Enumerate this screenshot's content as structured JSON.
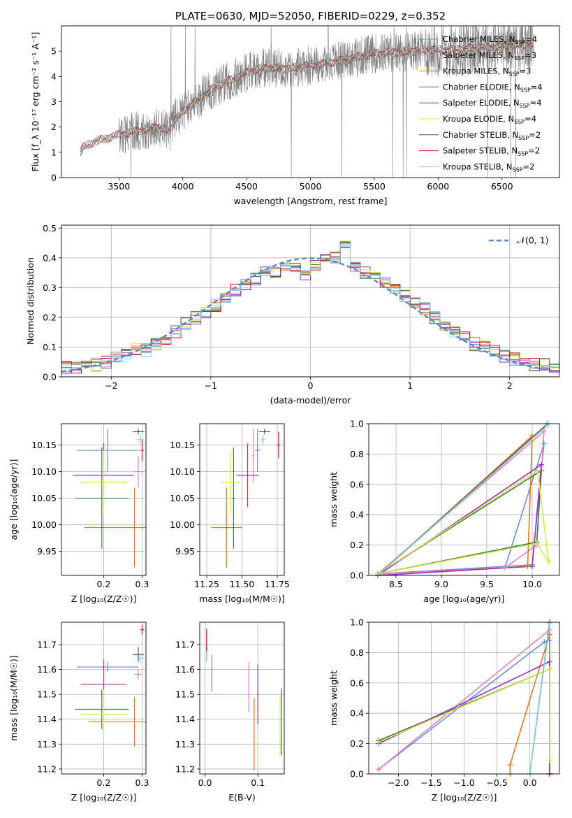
{
  "colors": {
    "chabrier_miles": "#6a8fd8",
    "salpeter_miles": "#e87fb8",
    "kroupa_miles": "#e07a1f",
    "chabrier_elodie": "#3f7f3f",
    "salpeter_elodie": "#9b30c8",
    "kroupa_elodie": "#d6e84a",
    "chabrier_stelib": "#555555",
    "salpeter_stelib": "#c8141e",
    "kroupa_stelib": "#7fd0e0",
    "data": "#808080",
    "gauss": "#5b86d1",
    "grid": "#b0b0b0"
  },
  "chart_data": [
    {
      "id": "spectrum",
      "type": "line",
      "title": "PLATE=0630, MJD=52050, FIBERID=0229, z=0.352",
      "xlabel": "wavelength [Angstrom, rest frame]",
      "ylabel": "Flux [f_λ 10⁻¹⁷ erg cm⁻² s⁻¹ A⁻¹]",
      "xlim": [
        3050,
        6950
      ],
      "ylim": [
        0,
        6
      ],
      "xticks": [
        "3500",
        "4000",
        "4500",
        "5000",
        "5500",
        "6000",
        "6500"
      ],
      "yticks": [
        "0",
        "1",
        "2",
        "3",
        "4",
        "5"
      ],
      "grid": false,
      "legend_position": "upper right",
      "legend": [
        "Chabrier MILES, N_SSP=4",
        "Salpeter MILES, N_SSP=3",
        "Kroupa MILES, N_SSP=3",
        "Chabrier ELODIE, N_SSP=4",
        "Salpeter ELODIE, N_SSP=4",
        "Kroupa ELODIE, N_SSP=4",
        "Chabrier STELIB, N_SSP=2",
        "Salpeter STELIB, N_SSP=2",
        "Kroupa STELIB, N_SSP=2"
      ],
      "model_trend": {
        "x": [
          3200,
          3220,
          3300,
          3400,
          3500,
          3600,
          3700,
          3800,
          3900,
          3940,
          4000,
          4100,
          4200,
          4300,
          4400,
          4500,
          4600,
          4700,
          4800,
          4900,
          5000,
          5100,
          5200,
          5300,
          5400,
          5500,
          5600,
          5700,
          5800,
          5900,
          6000,
          6100,
          6200,
          6300,
          6400,
          6500,
          6600,
          6700,
          6750
        ],
        "y": [
          1.0,
          1.2,
          1.4,
          1.55,
          1.7,
          1.8,
          1.9,
          2.0,
          1.85,
          2.3,
          2.6,
          3.0,
          3.4,
          3.7,
          3.9,
          4.15,
          4.3,
          4.35,
          4.3,
          4.35,
          4.45,
          4.5,
          4.6,
          4.7,
          4.8,
          4.9,
          4.95,
          4.95,
          5.0,
          5.05,
          5.05,
          5.05,
          5.1,
          5.15,
          5.15,
          5.2,
          5.25,
          5.25,
          5.3
        ]
      }
    },
    {
      "id": "residuals",
      "type": "histogram",
      "xlabel": "(data-model)/error",
      "ylabel": "Normed distribution",
      "xlim": [
        -2.5,
        2.5
      ],
      "ylim": [
        0,
        0.51
      ],
      "xticks": [
        "−2",
        "−1",
        "0",
        "1",
        "2"
      ],
      "yticks": [
        "0.0",
        "0.1",
        "0.2",
        "0.3",
        "0.4",
        "0.5"
      ],
      "grid": true,
      "legend": [
        "𝒩(0, 1)"
      ],
      "legend_position": "upper right",
      "bins": [
        -2.5,
        -2.4,
        -2.3,
        -2.2,
        -2.1,
        -2.0,
        -1.9,
        -1.8,
        -1.7,
        -1.6,
        -1.5,
        -1.4,
        -1.3,
        -1.2,
        -1.1,
        -1.0,
        -0.9,
        -0.8,
        -0.7,
        -0.6,
        -0.5,
        -0.4,
        -0.3,
        -0.2,
        -0.1,
        0.0,
        0.1,
        0.2,
        0.3,
        0.4,
        0.5,
        0.6,
        0.7,
        0.8,
        0.9,
        1.0,
        1.1,
        1.2,
        1.3,
        1.4,
        1.5,
        1.6,
        1.7,
        1.8,
        1.9,
        2.0,
        2.1,
        2.2,
        2.3,
        2.4,
        2.5
      ],
      "base_density": [
        0.03,
        0.03,
        0.035,
        0.04,
        0.05,
        0.07,
        0.08,
        0.09,
        0.09,
        0.11,
        0.13,
        0.15,
        0.18,
        0.2,
        0.22,
        0.24,
        0.27,
        0.29,
        0.31,
        0.33,
        0.35,
        0.35,
        0.37,
        0.36,
        0.34,
        0.37,
        0.39,
        0.4,
        0.45,
        0.37,
        0.35,
        0.33,
        0.32,
        0.3,
        0.27,
        0.25,
        0.23,
        0.2,
        0.17,
        0.15,
        0.13,
        0.11,
        0.1,
        0.09,
        0.07,
        0.06,
        0.05,
        0.04,
        0.04,
        0.03
      ]
    },
    {
      "id": "age_vs_Z",
      "type": "errorbar",
      "xlabel": "Z [log₁₀(Z/Z☉)]",
      "ylabel": "age  [log₁₀(age/yr)]",
      "xlim": [
        0.09,
        0.31
      ],
      "ylim": [
        9.905,
        10.19
      ],
      "xticks": [
        "0.2",
        "0.3"
      ],
      "yticks": [
        "9.95",
        "10.00",
        "10.05",
        "10.10",
        "10.15"
      ],
      "grid": true,
      "points": [
        {
          "model": "chabrier_miles",
          "x": 0.21,
          "xerr": 0.08,
          "y": 10.14,
          "yerr": 0.04
        },
        {
          "model": "salpeter_miles",
          "x": 0.29,
          "xerr": 0.01,
          "y": 10.1,
          "yerr": 0.03
        },
        {
          "model": "kroupa_miles",
          "x": 0.28,
          "xerr": 0.13,
          "y": 9.995,
          "yerr": 0.075
        },
        {
          "model": "chabrier_elodie",
          "x": 0.195,
          "xerr": 0.07,
          "y": 10.05,
          "yerr": 0.095
        },
        {
          "model": "salpeter_elodie",
          "x": 0.2,
          "xerr": 0.08,
          "y": 10.093,
          "yerr": 0.06
        },
        {
          "model": "kroupa_elodie",
          "x": 0.2,
          "xerr": 0.06,
          "y": 10.08,
          "yerr": 0.06
        },
        {
          "model": "chabrier_stelib",
          "x": 0.29,
          "xerr": 0.015,
          "y": 10.175,
          "yerr": 0.005
        },
        {
          "model": "salpeter_stelib",
          "x": 0.3,
          "xerr": 0.005,
          "y": 10.14,
          "yerr": 0.02
        },
        {
          "model": "kroupa_stelib",
          "x": 0.295,
          "xerr": 0.01,
          "y": 10.16,
          "yerr": 0.01
        }
      ]
    },
    {
      "id": "age_vs_mass",
      "type": "errorbar",
      "xlabel": "mass [log₁₀(M/M☉)]",
      "ylabel": "",
      "xlim": [
        11.2,
        11.8
      ],
      "ylim": [
        9.905,
        10.19
      ],
      "xticks": [
        "11.25",
        "11.50",
        "11.75"
      ],
      "yticks": [
        "9.95",
        "10.00",
        "10.05",
        "10.10",
        "10.15"
      ],
      "grid": true,
      "points": [
        {
          "model": "chabrier_miles",
          "x": 11.61,
          "xerr": 0.02,
          "y": 10.14,
          "yerr": 0.04
        },
        {
          "model": "salpeter_miles",
          "x": 11.58,
          "xerr": 0.01,
          "y": 10.13,
          "yerr": 0.05
        },
        {
          "model": "kroupa_miles",
          "x": 11.39,
          "xerr": 0.11,
          "y": 9.995,
          "yerr": 0.075
        },
        {
          "model": "chabrier_elodie",
          "x": 11.44,
          "xerr": 0.01,
          "y": 10.05,
          "yerr": 0.095
        },
        {
          "model": "salpeter_elodie",
          "x": 11.54,
          "xerr": 0.08,
          "y": 10.093,
          "yerr": 0.06
        },
        {
          "model": "kroupa_elodie",
          "x": 11.42,
          "xerr": 0.07,
          "y": 10.08,
          "yerr": 0.06
        },
        {
          "model": "chabrier_stelib",
          "x": 11.66,
          "xerr": 0.04,
          "y": 10.175,
          "yerr": 0.005
        },
        {
          "model": "salpeter_stelib",
          "x": 11.76,
          "xerr": 0.01,
          "y": 10.15,
          "yerr": 0.025
        },
        {
          "model": "kroupa_stelib",
          "x": 11.65,
          "xerr": 0.02,
          "y": 10.16,
          "yerr": 0.01
        }
      ]
    },
    {
      "id": "weight_vs_age",
      "type": "line",
      "xlabel": "age  [log₁₀(age/yr)]",
      "ylabel": "mass weight",
      "xlim": [
        8.2,
        10.3
      ],
      "ylim": [
        0,
        1
      ],
      "xticks": [
        "8.5",
        "9.0",
        "9.5",
        "10.0"
      ],
      "yticks": [
        "0.0",
        "0.2",
        "0.4",
        "0.6",
        "0.8",
        "1.0"
      ],
      "grid": true,
      "series": [
        {
          "model": "chabrier_miles",
          "x": [
            8.3,
            9.7,
            10.13,
            10.0,
            8.3
          ],
          "y": [
            0.01,
            0.05,
            0.87,
            0.07,
            0.01
          ]
        },
        {
          "model": "salpeter_miles",
          "x": [
            8.3,
            9.7,
            10.05,
            10.13,
            8.3
          ],
          "y": [
            0.01,
            0.05,
            0.2,
            0.95,
            0.01
          ]
        },
        {
          "model": "kroupa_miles",
          "x": [
            8.3,
            9.95,
            10.0,
            8.3
          ],
          "y": [
            0.0,
            0.06,
            0.92,
            0.0
          ]
        },
        {
          "model": "chabrier_elodie",
          "x": [
            8.3,
            10.05,
            10.1,
            8.3
          ],
          "y": [
            0.01,
            0.22,
            0.69,
            0.01
          ]
        },
        {
          "model": "salpeter_elodie",
          "x": [
            8.3,
            10.0,
            10.1,
            8.3
          ],
          "y": [
            0.0,
            0.06,
            0.73,
            0.0
          ]
        },
        {
          "model": "kroupa_elodie",
          "x": [
            8.3,
            10.05,
            10.18,
            10.06,
            8.3
          ],
          "y": [
            0.01,
            0.21,
            0.09,
            0.69,
            0.01
          ]
        },
        {
          "model": "chabrier_stelib",
          "x": [
            8.3,
            10.17
          ],
          "y": [
            0.0,
            1.0
          ]
        },
        {
          "model": "kroupa_stelib",
          "x": [
            8.3,
            10.17
          ],
          "y": [
            0.0,
            0.99
          ]
        }
      ]
    },
    {
      "id": "mass_vs_Z",
      "type": "errorbar",
      "xlabel": "Z [log₁₀(Z/Z☉)]",
      "ylabel": "mass [log₁₀(M/M☉)]",
      "xlim": [
        0.09,
        0.31
      ],
      "ylim": [
        11.18,
        11.79
      ],
      "xticks": [
        "0.2",
        "0.3"
      ],
      "yticks": [
        "11.2",
        "11.3",
        "11.4",
        "11.5",
        "11.6",
        "11.7"
      ],
      "grid": true,
      "points": [
        {
          "model": "chabrier_miles",
          "x": 0.21,
          "xerr": 0.08,
          "y": 11.61,
          "yerr": 0.02
        },
        {
          "model": "salpeter_miles",
          "x": 0.29,
          "xerr": 0.01,
          "y": 11.58,
          "yerr": 0.02
        },
        {
          "model": "kroupa_miles",
          "x": 0.28,
          "xerr": 0.12,
          "y": 11.39,
          "yerr": 0.1
        },
        {
          "model": "chabrier_elodie",
          "x": 0.195,
          "xerr": 0.07,
          "y": 11.44,
          "yerr": 0.08
        },
        {
          "model": "salpeter_elodie",
          "x": 0.2,
          "xerr": 0.06,
          "y": 11.54,
          "yerr": 0.1
        },
        {
          "model": "kroupa_elodie",
          "x": 0.2,
          "xerr": 0.06,
          "y": 11.42,
          "yerr": 0.1
        },
        {
          "model": "chabrier_stelib",
          "x": 0.29,
          "xerr": 0.015,
          "y": 11.66,
          "yerr": 0.03
        },
        {
          "model": "salpeter_stelib",
          "x": 0.3,
          "xerr": 0.005,
          "y": 11.76,
          "yerr": 0.02
        },
        {
          "model": "kroupa_stelib",
          "x": 0.295,
          "xerr": 0.01,
          "y": 11.645,
          "yerr": 0.02
        }
      ]
    },
    {
      "id": "mass_vs_ebv",
      "type": "errorbar",
      "xlabel": "E(B-V)",
      "ylabel": "",
      "xlim": [
        -0.01,
        0.15
      ],
      "ylim": [
        11.18,
        11.79
      ],
      "xticks": [
        "0.0",
        "0.1"
      ],
      "yticks": [
        "11.2",
        "11.3",
        "11.4",
        "11.5",
        "11.6",
        "11.7"
      ],
      "grid": true,
      "points": [
        {
          "model": "chabrier_miles",
          "x": 0.013,
          "y": 11.585,
          "yerr": 0.075
        },
        {
          "model": "salpeter_miles",
          "x": 0.083,
          "y": 11.53,
          "yerr": 0.1
        },
        {
          "model": "kroupa_miles",
          "x": 0.093,
          "y": 11.34,
          "yerr": 0.145
        },
        {
          "model": "chabrier_elodie",
          "x": 0.145,
          "y": 11.39,
          "yerr": 0.135
        },
        {
          "model": "salpeter_elodie",
          "x": 0.1,
          "y": 11.5,
          "yerr": 0.12
        },
        {
          "model": "kroupa_elodie",
          "x": 0.142,
          "y": 11.375,
          "yerr": 0.125
        },
        {
          "model": "chabrier_stelib",
          "x": 0.003,
          "y": 11.66,
          "yerr": 0.03
        },
        {
          "model": "salpeter_stelib",
          "x": 0.003,
          "y": 11.72,
          "yerr": 0.045
        },
        {
          "model": "kroupa_stelib",
          "x": 0.003,
          "y": 11.65,
          "yerr": 0.02
        }
      ]
    },
    {
      "id": "weight_vs_Z",
      "type": "line",
      "xlabel": "Z [log₁₀(Z/Z☉)]",
      "ylabel": "mass weight",
      "xlim": [
        -2.45,
        0.45
      ],
      "ylim": [
        0,
        1
      ],
      "xticks": [
        "−2.0",
        "−1.5",
        "−1.0",
        "−0.5",
        "0.0"
      ],
      "yticks": [
        "0.0",
        "0.2",
        "0.4",
        "0.6",
        "0.8",
        "1.0"
      ],
      "grid": true,
      "series": [
        {
          "model": "chabrier_miles",
          "x": [
            -2.3,
            0.22,
            0.3,
            0.3
          ],
          "y": [
            0.03,
            0.87,
            0.88,
            0.0
          ]
        },
        {
          "model": "salpeter_miles",
          "x": [
            -2.3,
            0.3,
            0.3
          ],
          "y": [
            0.03,
            0.95,
            0.0
          ]
        },
        {
          "model": "kroupa_miles",
          "x": [
            -0.3,
            -0.3,
            0.3,
            0.3
          ],
          "y": [
            0.0,
            0.06,
            0.92,
            0.0
          ]
        },
        {
          "model": "chabrier_elodie",
          "x": [
            -2.3,
            0.3,
            0.3
          ],
          "y": [
            0.22,
            0.69,
            0.0
          ]
        },
        {
          "model": "salpeter_elodie",
          "x": [
            -2.3,
            0.3,
            0.3
          ],
          "y": [
            0.2,
            0.74,
            0.0
          ]
        },
        {
          "model": "kroupa_elodie",
          "x": [
            -2.3,
            0.3,
            0.3
          ],
          "y": [
            0.21,
            0.69,
            0.09
          ]
        },
        {
          "model": "chabrier_stelib",
          "x": [
            0.0,
            0.3
          ],
          "y": [
            0.0,
            1.0
          ]
        },
        {
          "model": "kroupa_stelib",
          "x": [
            0.0,
            0.3
          ],
          "y": [
            0.0,
            0.99
          ]
        }
      ]
    }
  ]
}
